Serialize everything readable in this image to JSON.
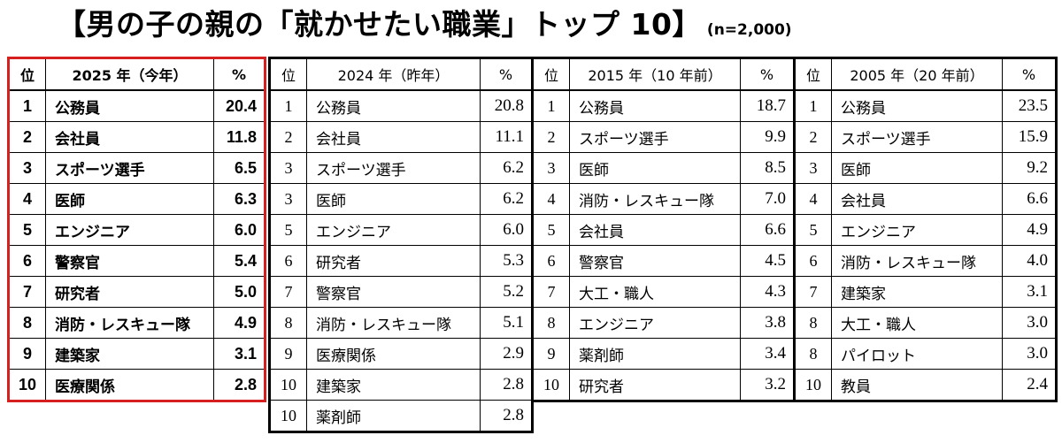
{
  "title": {
    "main": "【男の子の親の「就かせたい職業」トップ 10】",
    "sample": "(n=2,000)"
  },
  "tables": [
    {
      "header": {
        "rank": "位",
        "year": "2025 年（今年）",
        "pct": "%"
      },
      "rows": [
        {
          "rank": "1",
          "job": "公務員",
          "pct": "20.4"
        },
        {
          "rank": "2",
          "job": "会社員",
          "pct": "11.8"
        },
        {
          "rank": "3",
          "job": "スポーツ選手",
          "pct": "6.5"
        },
        {
          "rank": "4",
          "job": "医師",
          "pct": "6.3"
        },
        {
          "rank": "5",
          "job": "エンジニア",
          "pct": "6.0"
        },
        {
          "rank": "6",
          "job": "警察官",
          "pct": "5.4"
        },
        {
          "rank": "7",
          "job": "研究者",
          "pct": "5.0"
        },
        {
          "rank": "8",
          "job": "消防・レスキュー隊",
          "pct": "4.9"
        },
        {
          "rank": "9",
          "job": "建築家",
          "pct": "3.1"
        },
        {
          "rank": "10",
          "job": "医療関係",
          "pct": "2.8"
        }
      ]
    },
    {
      "header": {
        "rank": "位",
        "year": "2024 年（昨年）",
        "pct": "%"
      },
      "rows": [
        {
          "rank": "1",
          "job": "公務員",
          "pct": "20.8"
        },
        {
          "rank": "2",
          "job": "会社員",
          "pct": "11.1"
        },
        {
          "rank": "3",
          "job": "スポーツ選手",
          "pct": "6.2"
        },
        {
          "rank": "3",
          "job": "医師",
          "pct": "6.2"
        },
        {
          "rank": "5",
          "job": "エンジニア",
          "pct": "6.0"
        },
        {
          "rank": "6",
          "job": "研究者",
          "pct": "5.3"
        },
        {
          "rank": "7",
          "job": "警察官",
          "pct": "5.2"
        },
        {
          "rank": "8",
          "job": "消防・レスキュー隊",
          "pct": "5.1"
        },
        {
          "rank": "9",
          "job": "医療関係",
          "pct": "2.9"
        },
        {
          "rank": "10",
          "job": "建築家",
          "pct": "2.8"
        },
        {
          "rank": "10",
          "job": "薬剤師",
          "pct": "2.8"
        }
      ]
    },
    {
      "header": {
        "rank": "位",
        "year": "2015 年（10 年前）",
        "pct": "%"
      },
      "rows": [
        {
          "rank": "1",
          "job": "公務員",
          "pct": "18.7"
        },
        {
          "rank": "2",
          "job": "スポーツ選手",
          "pct": "9.9"
        },
        {
          "rank": "3",
          "job": "医師",
          "pct": "8.5"
        },
        {
          "rank": "4",
          "job": "消防・レスキュー隊",
          "pct": "7.0"
        },
        {
          "rank": "5",
          "job": "会社員",
          "pct": "6.6"
        },
        {
          "rank": "6",
          "job": "警察官",
          "pct": "4.5"
        },
        {
          "rank": "7",
          "job": "大工・職人",
          "pct": "4.3"
        },
        {
          "rank": "8",
          "job": "エンジニア",
          "pct": "3.8"
        },
        {
          "rank": "9",
          "job": "薬剤師",
          "pct": "3.4"
        },
        {
          "rank": "10",
          "job": "研究者",
          "pct": "3.2"
        }
      ]
    },
    {
      "header": {
        "rank": "位",
        "year": "2005 年（20 年前）",
        "pct": "%"
      },
      "rows": [
        {
          "rank": "1",
          "job": "公務員",
          "pct": "23.5"
        },
        {
          "rank": "2",
          "job": "スポーツ選手",
          "pct": "15.9"
        },
        {
          "rank": "3",
          "job": "医師",
          "pct": "9.2"
        },
        {
          "rank": "4",
          "job": "会社員",
          "pct": "6.6"
        },
        {
          "rank": "5",
          "job": "エンジニア",
          "pct": "4.9"
        },
        {
          "rank": "6",
          "job": "消防・レスキュー隊",
          "pct": "4.0"
        },
        {
          "rank": "7",
          "job": "建築家",
          "pct": "3.1"
        },
        {
          "rank": "8",
          "job": "大工・職人",
          "pct": "3.0"
        },
        {
          "rank": "8",
          "job": "パイロット",
          "pct": "3.0"
        },
        {
          "rank": "10",
          "job": "教員",
          "pct": "2.4"
        }
      ]
    }
  ]
}
